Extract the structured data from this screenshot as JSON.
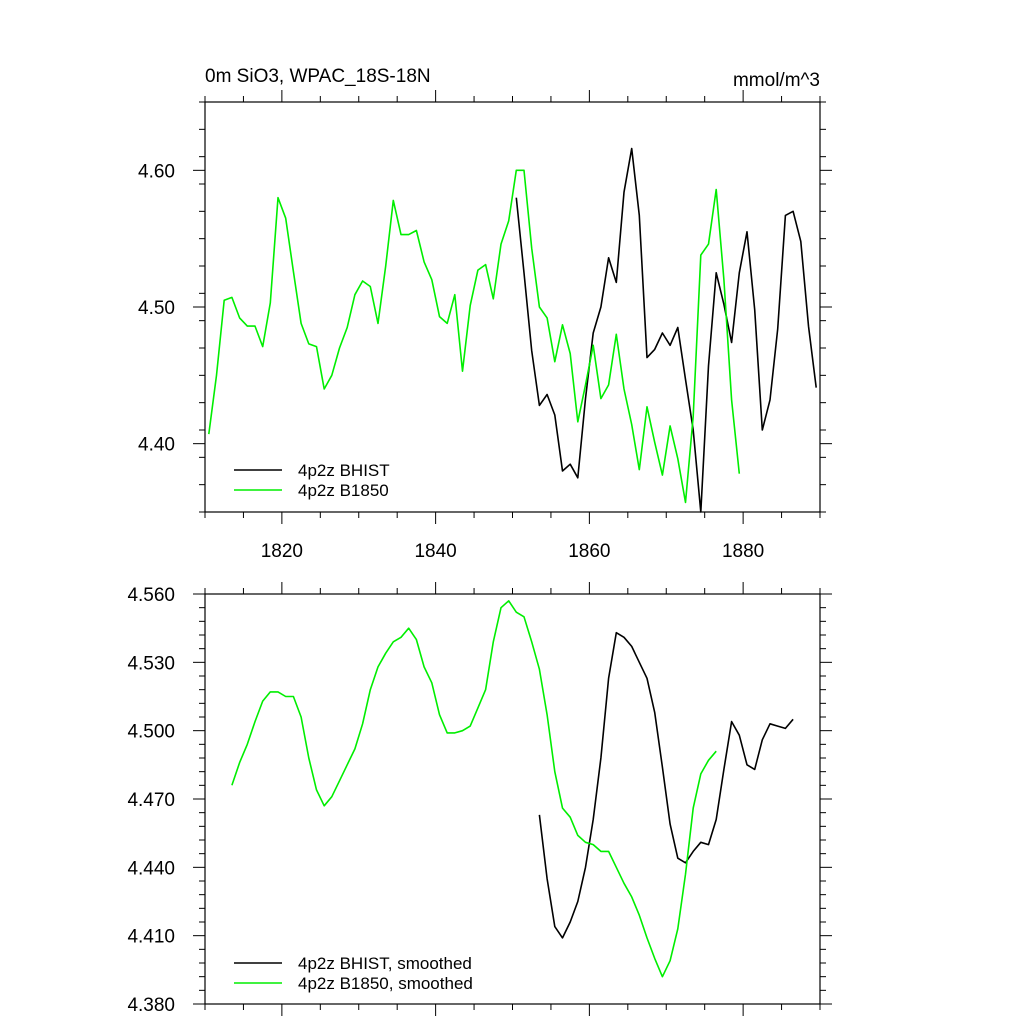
{
  "colors": {
    "bhist": "#000000",
    "b1850": "#00ee00"
  },
  "chart_data": [
    {
      "type": "line",
      "title": "0m SiO3, WPAC_18S-18N",
      "units": "mmol/m^3",
      "xlim": [
        1810,
        1890
      ],
      "ylim": [
        4.35,
        4.65
      ],
      "x_ticks": [
        1820,
        1840,
        1860,
        1880
      ],
      "x_tick_labels": [
        "1820",
        "1840",
        "1860",
        "1880"
      ],
      "y_ticks": [
        4.4,
        4.5,
        4.6
      ],
      "y_tick_labels": [
        "4.40",
        "4.50",
        "4.60"
      ],
      "legend_position": "bottom-left",
      "series": [
        {
          "name": "4p2z BHIST",
          "color": "#000000",
          "x": [
            1850.5,
            1851.5,
            1852.5,
            1853.5,
            1854.5,
            1855.5,
            1856.5,
            1857.5,
            1858.5,
            1859.5,
            1860.5,
            1861.5,
            1862.5,
            1863.5,
            1864.5,
            1865.5,
            1866.5,
            1867.5,
            1868.5,
            1869.5,
            1870.5,
            1871.5,
            1872.5,
            1873.5,
            1874.5,
            1875.5,
            1876.5,
            1877.5,
            1878.5,
            1879.5,
            1880.5,
            1881.5,
            1882.5,
            1883.5,
            1884.5,
            1885.5,
            1886.5,
            1887.5,
            1888.5,
            1889.5
          ],
          "values": [
            4.58,
            4.525,
            4.468,
            4.428,
            4.436,
            4.421,
            4.38,
            4.385,
            4.375,
            4.433,
            4.481,
            4.5,
            4.536,
            4.518,
            4.584,
            4.616,
            4.567,
            4.463,
            4.469,
            4.481,
            4.472,
            4.485,
            4.447,
            4.41,
            4.35,
            4.457,
            4.525,
            4.502,
            4.474,
            4.525,
            4.555,
            4.498,
            4.41,
            4.432,
            4.484,
            4.567,
            4.57,
            4.548,
            4.486,
            4.441
          ]
        },
        {
          "name": "4p2z B1850",
          "color": "#00ee00",
          "x": [
            1810.5,
            1811.5,
            1812.5,
            1813.5,
            1814.5,
            1815.5,
            1816.5,
            1817.5,
            1818.5,
            1819.5,
            1820.5,
            1821.5,
            1822.5,
            1823.5,
            1824.5,
            1825.5,
            1826.5,
            1827.5,
            1828.5,
            1829.5,
            1830.5,
            1831.5,
            1832.5,
            1833.5,
            1834.5,
            1835.5,
            1836.5,
            1837.5,
            1838.5,
            1839.5,
            1840.5,
            1841.5,
            1842.5,
            1843.5,
            1844.5,
            1845.5,
            1846.5,
            1847.5,
            1848.5,
            1849.5,
            1850.5,
            1851.5,
            1852.5,
            1853.5,
            1854.5,
            1855.5,
            1856.5,
            1857.5,
            1858.5,
            1859.5,
            1860.5,
            1861.5,
            1862.5,
            1863.5,
            1864.5,
            1865.5,
            1866.5,
            1867.5,
            1868.5,
            1869.5,
            1870.5,
            1871.5,
            1872.5,
            1873.5,
            1874.5,
            1875.5,
            1876.5,
            1877.5,
            1878.5,
            1879.5
          ],
          "values": [
            4.407,
            4.45,
            4.505,
            4.507,
            4.492,
            4.486,
            4.486,
            4.471,
            4.503,
            4.58,
            4.565,
            4.526,
            4.488,
            4.473,
            4.471,
            4.44,
            4.45,
            4.47,
            4.485,
            4.509,
            4.519,
            4.515,
            4.488,
            4.53,
            4.578,
            4.553,
            4.553,
            4.556,
            4.533,
            4.52,
            4.493,
            4.488,
            4.509,
            4.453,
            4.501,
            4.527,
            4.531,
            4.506,
            4.546,
            4.563,
            4.6,
            4.6,
            4.543,
            4.5,
            4.492,
            4.46,
            4.487,
            4.466,
            4.416,
            4.443,
            4.472,
            4.433,
            4.443,
            4.48,
            4.44,
            4.414,
            4.381,
            4.427,
            4.401,
            4.377,
            4.413,
            4.389,
            4.357,
            4.42,
            4.538,
            4.546,
            4.586,
            4.52,
            4.432,
            4.378
          ]
        }
      ]
    },
    {
      "type": "line",
      "title": "",
      "xlim": [
        1810,
        1890
      ],
      "ylim": [
        4.38,
        4.56
      ],
      "x_ticks": [
        1820,
        1840,
        1860,
        1880
      ],
      "y_ticks": [
        4.38,
        4.41,
        4.44,
        4.47,
        4.5,
        4.53,
        4.56
      ],
      "y_tick_labels": [
        "4.380",
        "4.410",
        "4.440",
        "4.470",
        "4.500",
        "4.530",
        "4.560"
      ],
      "legend_position": "bottom-left",
      "series": [
        {
          "name": "4p2z BHIST, smoothed",
          "color": "#000000",
          "x": [
            1853.5,
            1854.5,
            1855.5,
            1856.5,
            1857.5,
            1858.5,
            1859.5,
            1860.5,
            1861.5,
            1862.5,
            1863.5,
            1864.5,
            1865.5,
            1866.5,
            1867.5,
            1868.5,
            1869.5,
            1870.5,
            1871.5,
            1872.5,
            1873.5,
            1874.5,
            1875.5,
            1876.5,
            1877.5,
            1878.5,
            1879.5,
            1880.5,
            1881.5,
            1882.5,
            1883.5,
            1884.5,
            1885.5,
            1886.5
          ],
          "values": [
            4.463,
            4.435,
            4.414,
            4.409,
            4.416,
            4.425,
            4.44,
            4.461,
            4.488,
            4.523,
            4.543,
            4.541,
            4.537,
            4.53,
            4.523,
            4.508,
            4.484,
            4.459,
            4.444,
            4.442,
            4.447,
            4.451,
            4.45,
            4.461,
            4.483,
            4.504,
            4.498,
            4.485,
            4.483,
            4.496,
            4.503,
            4.502,
            4.501,
            4.505
          ]
        },
        {
          "name": "4p2z B1850, smoothed",
          "color": "#00ee00",
          "x": [
            1813.5,
            1814.5,
            1815.5,
            1816.5,
            1817.5,
            1818.5,
            1819.5,
            1820.5,
            1821.5,
            1822.5,
            1823.5,
            1824.5,
            1825.5,
            1826.5,
            1827.5,
            1828.5,
            1829.5,
            1830.5,
            1831.5,
            1832.5,
            1833.5,
            1834.5,
            1835.5,
            1836.5,
            1837.5,
            1838.5,
            1839.5,
            1840.5,
            1841.5,
            1842.5,
            1843.5,
            1844.5,
            1845.5,
            1846.5,
            1847.5,
            1848.5,
            1849.5,
            1850.5,
            1851.5,
            1852.5,
            1853.5,
            1854.5,
            1855.5,
            1856.5,
            1857.5,
            1858.5,
            1859.5,
            1860.5,
            1861.5,
            1862.5,
            1863.5,
            1864.5,
            1865.5,
            1866.5,
            1867.5,
            1868.5,
            1869.5,
            1870.5,
            1871.5,
            1872.5,
            1873.5,
            1874.5,
            1875.5,
            1876.5
          ],
          "values": [
            4.476,
            4.486,
            4.494,
            4.504,
            4.513,
            4.517,
            4.517,
            4.515,
            4.515,
            4.506,
            4.488,
            4.474,
            4.467,
            4.471,
            4.478,
            4.485,
            4.492,
            4.503,
            4.518,
            4.528,
            4.534,
            4.539,
            4.541,
            4.545,
            4.54,
            4.528,
            4.521,
            4.507,
            4.499,
            4.499,
            4.5,
            4.502,
            4.51,
            4.518,
            4.539,
            4.554,
            4.557,
            4.552,
            4.55,
            4.539,
            4.527,
            4.507,
            4.482,
            4.466,
            4.462,
            4.454,
            4.451,
            4.45,
            4.447,
            4.447,
            4.44,
            4.433,
            4.427,
            4.419,
            4.409,
            4.4,
            4.392,
            4.399,
            4.413,
            4.437,
            4.466,
            4.481,
            4.487,
            4.491
          ]
        }
      ]
    }
  ]
}
